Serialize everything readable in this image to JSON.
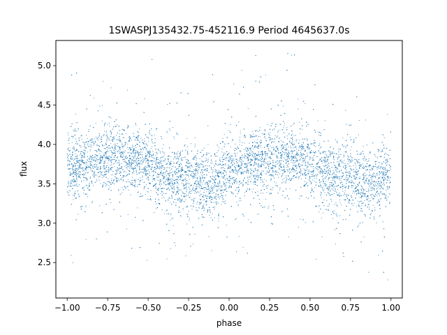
{
  "chart_data": {
    "type": "scatter",
    "title": "1SWASPJ135432.75-452116.9 Period 4645637.0s",
    "xlabel": "phase",
    "ylabel": "flux",
    "xlim": [
      -1.07,
      1.07
    ],
    "ylim": [
      2.05,
      5.32
    ],
    "x_ticks": [
      -1.0,
      -0.75,
      -0.5,
      -0.25,
      0.0,
      0.25,
      0.5,
      0.75,
      1.0
    ],
    "x_tick_labels": [
      "−1.00",
      "−0.75",
      "−0.50",
      "−0.25",
      "0.00",
      "0.25",
      "0.50",
      "0.75",
      "1.00"
    ],
    "y_ticks": [
      2.5,
      3.0,
      3.5,
      4.0,
      4.5,
      5.0
    ],
    "y_tick_labels": [
      "2.5",
      "3.0",
      "3.5",
      "4.0",
      "4.5",
      "5.0"
    ],
    "grid": false,
    "legend": "none",
    "marker_color": "#1f77b4",
    "series": [
      {
        "phase_range": [
          -1.0,
          1.0
        ],
        "median_flux_profile": [
          {
            "phase": -1.0,
            "flux": 3.7
          },
          {
            "phase": -0.9,
            "flux": 3.72
          },
          {
            "phase": -0.75,
            "flux": 3.85
          },
          {
            "phase": -0.6,
            "flux": 3.82
          },
          {
            "phase": -0.5,
            "flux": 3.72
          },
          {
            "phase": -0.4,
            "flux": 3.6
          },
          {
            "phase": -0.25,
            "flux": 3.55
          },
          {
            "phase": -0.1,
            "flux": 3.5
          },
          {
            "phase": 0.0,
            "flux": 3.68
          },
          {
            "phase": 0.1,
            "flux": 3.72
          },
          {
            "phase": 0.25,
            "flux": 3.85
          },
          {
            "phase": 0.4,
            "flux": 3.82
          },
          {
            "phase": 0.5,
            "flux": 3.72
          },
          {
            "phase": 0.6,
            "flux": 3.6
          },
          {
            "phase": 0.75,
            "flux": 3.55
          },
          {
            "phase": 0.9,
            "flux": 3.5
          },
          {
            "phase": 1.0,
            "flux": 3.6
          }
        ],
        "flux_scatter_range": [
          2.2,
          5.2
        ]
      }
    ]
  }
}
